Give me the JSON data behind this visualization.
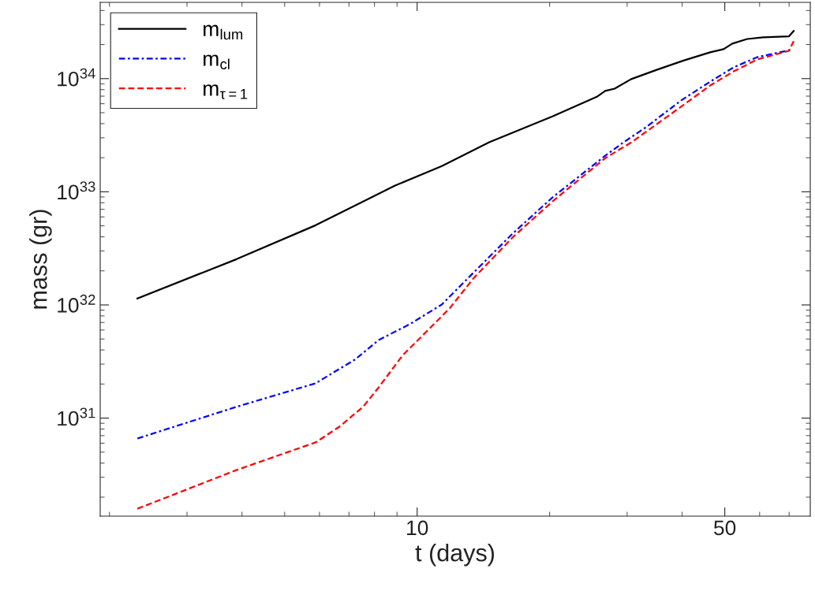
{
  "chart_data": {
    "type": "line",
    "xlabel": "t (days)",
    "ylabel": "mass (gr)",
    "log": "xy",
    "grid": false,
    "legend": "top left",
    "xlim": [
      1.905,
      78.2
    ],
    "xticks": [
      10,
      50
    ],
    "ylim": [
      1.36e+30,
      4.72e+34
    ],
    "yticks": [
      {
        "value": 1e+31,
        "label": "10$^{31}$"
      },
      {
        "value": 1e+32,
        "label": "10$^{32}$"
      },
      {
        "value": 1e+33,
        "label": "10$^{33}$"
      },
      {
        "value": 1e+34,
        "label": "10$^{34}$"
      }
    ],
    "series": [
      {
        "name": "m$_{lum}$",
        "color": "#000000",
        "line_style": "solid",
        "x": [
          2.314,
          3.89,
          5.88,
          8.89,
          11.38,
          14.58,
          20.29,
          25.67,
          26.74,
          28.1,
          30.65,
          35.12,
          40.41,
          46.32,
          49.69,
          52.0,
          56.2,
          61.1,
          69.9,
          71.7
        ],
        "values": [
          1.14e+32,
          2.54e+32,
          5.06e+32,
          1.13e+33,
          1.69e+33,
          2.74e+33,
          4.64e+33,
          6.95e+33,
          7.78e+33,
          8.15e+33,
          9.9e+33,
          1.2e+34,
          1.45e+34,
          1.71e+34,
          1.82e+34,
          2.04e+34,
          2.24e+34,
          2.32e+34,
          2.36e+34,
          2.64e+34
        ]
      },
      {
        "name": "m$_{cl}$",
        "color": "#0000ff",
        "line_style": "dashdot",
        "x": [
          2.314,
          3.89,
          5.88,
          7.23,
          8.18,
          9.65,
          11.38,
          13.43,
          16.51,
          20.29,
          26.74,
          29.42,
          33.28,
          39.75,
          46.32,
          52.4,
          59.3,
          71.0
        ],
        "values": [
          6.6e+30,
          1.26e+31,
          2.03e+31,
          3.3e+31,
          4.9e+31,
          6.8e+31,
          1.01e+32,
          1.93e+32,
          4.3e+32,
          8.9e+32,
          2.08e+33,
          2.73e+33,
          3.77e+33,
          6.4e+33,
          9.4e+33,
          1.26e+34,
          1.55e+34,
          1.8e+34
        ]
      },
      {
        "name": "m$_{τ=1}$",
        "color": "#ff0000",
        "line_style": "dashed",
        "x": [
          2.314,
          3.89,
          5.88,
          6.66,
          7.54,
          8.18,
          9.26,
          10.48,
          11.86,
          13.43,
          16.51,
          20.29,
          26.74,
          30.65,
          40.41,
          46.32,
          52.4,
          59.3,
          69.9,
          71.7
        ],
        "values": [
          1.58e+30,
          3.48e+30,
          6.1e+30,
          8.4e+30,
          1.26e+31,
          1.87e+31,
          3.57e+31,
          5.77e+31,
          9.35e+31,
          1.72e+32,
          3.98e+32,
          8.2e+32,
          1.98e+33,
          2.73e+33,
          5.9e+33,
          8.7e+33,
          1.16e+34,
          1.48e+34,
          1.76e+34,
          2.14e+34
        ]
      }
    ]
  }
}
